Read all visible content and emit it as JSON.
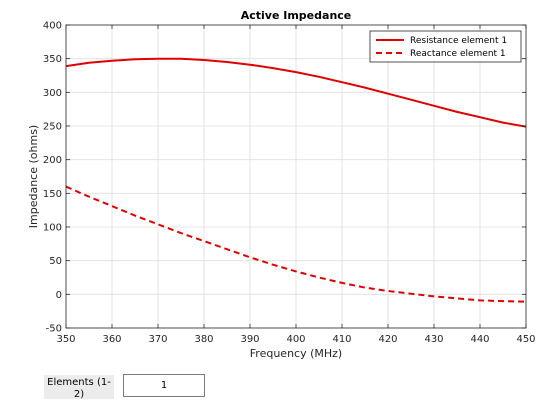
{
  "chart_data": {
    "type": "line",
    "title": "Active Impedance",
    "xlabel": "Frequency (MHz)",
    "ylabel": "Impedance (ohms)",
    "xlim": [
      350,
      450
    ],
    "ylim": [
      -50,
      400
    ],
    "xticks": [
      350,
      360,
      370,
      380,
      390,
      400,
      410,
      420,
      430,
      440,
      450
    ],
    "yticks": [
      -50,
      0,
      50,
      100,
      150,
      200,
      250,
      300,
      350,
      400
    ],
    "grid": true,
    "legend_position": "top-right",
    "series": [
      {
        "name": "Resistance element 1",
        "color": "#e00000",
        "style": "solid",
        "x": [
          350,
          355,
          360,
          365,
          370,
          375,
          380,
          385,
          390,
          395,
          400,
          405,
          410,
          415,
          420,
          425,
          430,
          435,
          440,
          445,
          450
        ],
        "values": [
          339,
          344,
          347,
          349,
          350,
          350,
          348,
          345,
          341,
          336,
          330,
          323,
          315,
          307,
          298,
          289,
          280,
          271,
          263,
          255,
          249
        ]
      },
      {
        "name": "Reactance element 1",
        "color": "#e00000",
        "style": "dashed",
        "x": [
          350,
          355,
          360,
          365,
          370,
          375,
          380,
          385,
          390,
          395,
          400,
          405,
          410,
          415,
          420,
          425,
          430,
          435,
          440,
          445,
          450
        ],
        "values": [
          160,
          145,
          131,
          117,
          104,
          91,
          79,
          67,
          55,
          44,
          34,
          25,
          17,
          10,
          5,
          1,
          -3,
          -6,
          -9,
          -10,
          -11
        ]
      }
    ]
  },
  "controls": {
    "elements_label": "Elements (1-2)",
    "elements_value": "1"
  }
}
